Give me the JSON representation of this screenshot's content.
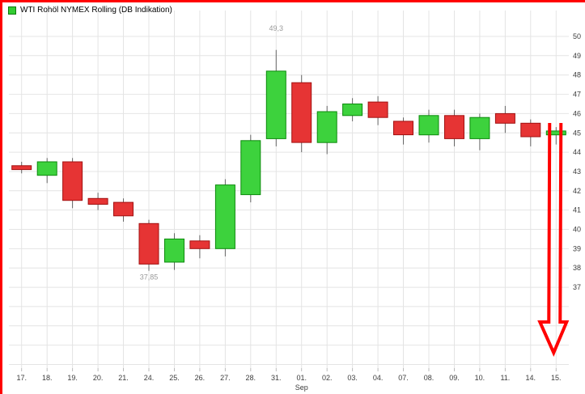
{
  "legend": {
    "label": "WTI Rohöl NYMEX Rolling (DB Indikation)",
    "marker_color": "#33cc33"
  },
  "chart_data": {
    "type": "candlestick",
    "title": "WTI Rohöl NYMEX Rolling (DB Indikation)",
    "categories": [
      "17.",
      "18.",
      "19.",
      "20.",
      "21.",
      "24.",
      "25.",
      "26.",
      "27.",
      "28.",
      "31.",
      "01.",
      "02.",
      "03.",
      "04.",
      "07.",
      "08.",
      "09.",
      "10.",
      "11.",
      "14.",
      "15."
    ],
    "month_label": {
      "text": "Sep",
      "at_category": "01."
    },
    "y_ticks": [
      50,
      49,
      48,
      47,
      46,
      45,
      44,
      43,
      42,
      41,
      40,
      39,
      38,
      37
    ],
    "ylim": [
      33.5,
      51.3
    ],
    "grid": true,
    "series": [
      {
        "name": "WTI Rohöl NYMEX Rolling",
        "ohlc_fields": [
          "open",
          "high",
          "low",
          "close"
        ],
        "ohlc": [
          [
            43.3,
            43.5,
            42.9,
            43.1
          ],
          [
            42.8,
            43.7,
            42.4,
            43.5
          ],
          [
            43.5,
            43.7,
            41.1,
            41.5
          ],
          [
            41.6,
            41.9,
            41.0,
            41.3
          ],
          [
            41.4,
            41.6,
            40.4,
            40.7
          ],
          [
            40.3,
            40.5,
            37.85,
            38.2
          ],
          [
            38.3,
            39.8,
            37.9,
            39.5
          ],
          [
            39.4,
            39.7,
            38.5,
            39.0
          ],
          [
            39.0,
            42.6,
            38.6,
            42.3
          ],
          [
            41.8,
            44.9,
            41.4,
            44.6
          ],
          [
            44.7,
            49.3,
            44.3,
            48.2
          ],
          [
            47.6,
            48.0,
            44.0,
            44.5
          ],
          [
            44.5,
            46.4,
            43.9,
            46.1
          ],
          [
            45.9,
            46.8,
            45.6,
            46.5
          ],
          [
            46.6,
            46.9,
            45.4,
            45.8
          ],
          [
            45.6,
            45.8,
            44.4,
            44.9
          ],
          [
            44.9,
            46.2,
            44.5,
            45.9
          ],
          [
            45.9,
            46.2,
            44.3,
            44.7
          ],
          [
            44.7,
            46.0,
            44.1,
            45.8
          ],
          [
            46.0,
            46.4,
            45.0,
            45.5
          ],
          [
            45.5,
            45.7,
            44.3,
            44.8
          ],
          [
            44.9,
            45.3,
            44.4,
            45.1
          ]
        ]
      }
    ],
    "colors": {
      "up": "#3dd23d",
      "up_border": "#0c8a0c",
      "down": "#e63434",
      "down_border": "#a21111",
      "wick": "#666666",
      "grid": "#e4e4e4",
      "axis_text": "#3c3c3c",
      "annotation_text": "#9a9a9a",
      "arrow": "#ff0000"
    },
    "annotations": [
      {
        "type": "text",
        "text": "49,3",
        "category": "31.",
        "price": 50.3
      },
      {
        "type": "text",
        "text": "37,85",
        "category": "24.",
        "price": 37.4
      },
      {
        "type": "arrow",
        "category": "15.",
        "from_price": 45.5,
        "to_price": 33.6
      }
    ],
    "legend_position": "top-left",
    "y_axis_side": "right"
  }
}
